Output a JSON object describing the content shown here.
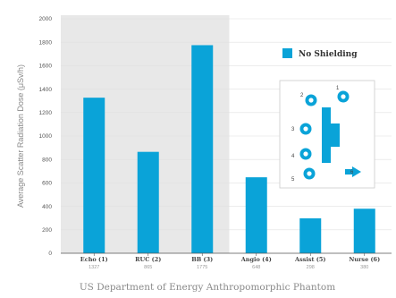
{
  "chart_data": {
    "type": "bar",
    "categories": [
      "Echo (1)",
      "RUC (2)",
      "BB (3)",
      "Angio (4)",
      "Assist (5)",
      "Nurse (6)"
    ],
    "category_subvalues": [
      "1327",
      "865",
      "1775",
      "648",
      "298",
      "380"
    ],
    "values": [
      1327,
      865,
      1775,
      648,
      298,
      380
    ],
    "series": [
      {
        "name": "No Shielding",
        "values": [
          1327,
          865,
          1775,
          648,
          298,
          380
        ]
      }
    ],
    "ylabel": "Average Scatter Radiation Dose (μSv/h)",
    "xlabel": "US Department of Energy Anthropomorphic Phantom",
    "ylim": [
      0,
      2000
    ],
    "yticks": [
      0,
      200,
      400,
      600,
      800,
      1000,
      1200,
      1400,
      1600,
      1800,
      2000
    ],
    "grid": true,
    "legend": "top-right",
    "shaded_category_count": 3,
    "colors": {
      "bar": "#0aa3d8",
      "shade": "#e8e8e8",
      "grid": "#e0e0e0",
      "axis": "#555555"
    },
    "inset_markers": [
      "1",
      "2",
      "3",
      "4",
      "5",
      "6"
    ]
  }
}
